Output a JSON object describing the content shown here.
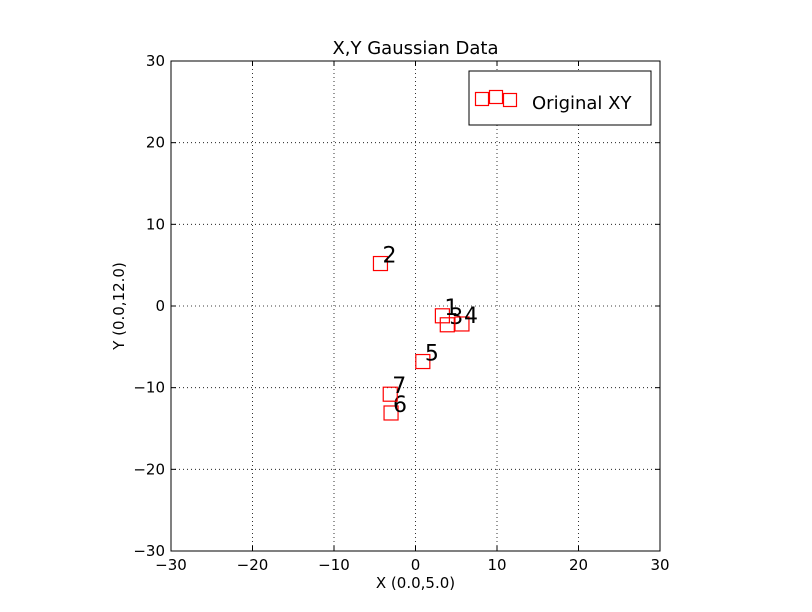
{
  "chart_data": {
    "type": "scatter",
    "title": "X,Y Gaussian Data",
    "xlabel": "X (0.0,5.0)",
    "ylabel": "Y (0.0,12.0)",
    "xlim": [
      -30,
      30
    ],
    "ylim": [
      -30,
      30
    ],
    "xticks": [
      -30,
      -20,
      -10,
      0,
      10,
      20,
      30
    ],
    "yticks": [
      -30,
      -20,
      -10,
      0,
      10,
      20,
      30
    ],
    "xtick_labels": [
      "−30",
      "−20",
      "−10",
      "0",
      "10",
      "20",
      "30"
    ],
    "ytick_labels": [
      "−30",
      "−20",
      "−10",
      "0",
      "10",
      "20",
      "30"
    ],
    "grid": true,
    "legend_position": "top-right",
    "series": [
      {
        "name": "Original XY",
        "marker": "square",
        "color": "#ff0000",
        "points": [
          {
            "label": "1",
            "x": 3.3,
            "y": -1.2
          },
          {
            "label": "2",
            "x": -4.3,
            "y": 5.2
          },
          {
            "label": "3",
            "x": 3.9,
            "y": -2.3
          },
          {
            "label": "4",
            "x": 5.7,
            "y": -2.2
          },
          {
            "label": "5",
            "x": 0.9,
            "y": -6.8
          },
          {
            "label": "6",
            "x": -3.0,
            "y": -13.1
          },
          {
            "label": "7",
            "x": -3.1,
            "y": -10.8
          }
        ]
      }
    ]
  }
}
